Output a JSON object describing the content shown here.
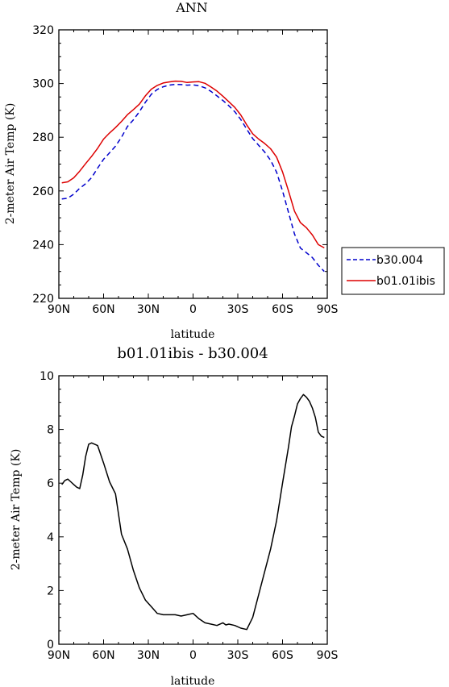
{
  "chart_data": [
    {
      "type": "line",
      "title": "ANN",
      "xlabel": "latitude",
      "ylabel": "2-meter Air Temp (K)",
      "xlim": [
        90,
        -90
      ],
      "ylim": [
        220,
        320
      ],
      "xticks": [
        90,
        60,
        30,
        0,
        -30,
        -60,
        -90
      ],
      "xticklabels": [
        "90N",
        "60N",
        "30N",
        "0",
        "30S",
        "60S",
        "90S"
      ],
      "yticks": [
        220,
        240,
        260,
        280,
        300,
        320
      ],
      "legend_position": "right, outside plot",
      "grid": false,
      "x": [
        88,
        84,
        80,
        76,
        72,
        68,
        64,
        60,
        56,
        52,
        48,
        44,
        40,
        36,
        32,
        28,
        24,
        20,
        16,
        12,
        8,
        4,
        0,
        -4,
        -8,
        -12,
        -16,
        -20,
        -24,
        -28,
        -32,
        -36,
        -40,
        -44,
        -48,
        -52,
        -56,
        -60,
        -64,
        -68,
        -72,
        -76,
        -80,
        -84,
        -88
      ],
      "series": [
        {
          "name": "b30.004",
          "color": "#0000cc",
          "dash": "dashed",
          "values": [
            257,
            257.3,
            258.8,
            261,
            262.7,
            265,
            268.5,
            271.8,
            274.2,
            276.7,
            280,
            284,
            286.5,
            289.5,
            293,
            296,
            297.8,
            298.8,
            299.4,
            299.7,
            299.6,
            299.4,
            299.5,
            299.2,
            298.4,
            297.1,
            295.4,
            293.7,
            291.7,
            289.5,
            286.6,
            283,
            279.5,
            277,
            274.5,
            271.4,
            267,
            260,
            252,
            244,
            238.7,
            237,
            235.2,
            232.3,
            230
          ]
        },
        {
          "name": "b01.01ibis",
          "color": "#dd0000",
          "dash": "solid",
          "values": [
            263,
            263.4,
            264.9,
            267.4,
            270.2,
            272.9,
            275.9,
            279.3,
            281.6,
            283.6,
            285.9,
            288.4,
            290.3,
            292.3,
            295.4,
            297.9,
            299.3,
            300.2,
            300.6,
            300.9,
            300.8,
            300.4,
            300.6,
            300.7,
            300.1,
            298.7,
            297.2,
            295.3,
            293.2,
            291.1,
            288.3,
            284.6,
            281.3,
            279.3,
            277.7,
            275.7,
            272.6,
            267.1,
            260,
            252.5,
            248.2,
            246.3,
            243.6,
            240,
            238.8
          ]
        }
      ]
    },
    {
      "type": "line",
      "title": "b01.01ibis - b30.004",
      "xlabel": "latitude",
      "ylabel": "2-meter Air Temp (K)",
      "xlim": [
        90,
        -90
      ],
      "ylim": [
        0,
        10
      ],
      "xticks": [
        90,
        60,
        30,
        0,
        -30,
        -60,
        -90
      ],
      "xticklabels": [
        "90N",
        "60N",
        "30N",
        "0",
        "30S",
        "60S",
        "90S"
      ],
      "yticks": [
        0,
        2,
        4,
        6,
        8,
        10
      ],
      "grid": false,
      "x": [
        88,
        86,
        84,
        82,
        80,
        78,
        76,
        74,
        72,
        70,
        68,
        64,
        60,
        56,
        52,
        48,
        44,
        40,
        36,
        32,
        28,
        24,
        20,
        16,
        12,
        8,
        4,
        0,
        -4,
        -8,
        -12,
        -16,
        -20,
        -22,
        -24,
        -28,
        -32,
        -36,
        -40,
        -44,
        -48,
        -52,
        -56,
        -60,
        -64,
        -66,
        -68,
        -70,
        -72,
        -74,
        -76,
        -78,
        -80,
        -82,
        -84,
        -86,
        -88
      ],
      "series": [
        {
          "color": "#000000",
          "values": [
            5.95,
            6.1,
            6.15,
            6.05,
            5.95,
            5.85,
            5.8,
            6.3,
            7,
            7.45,
            7.5,
            7.4,
            6.75,
            6.05,
            5.6,
            4.1,
            3.55,
            2.75,
            2.1,
            1.65,
            1.4,
            1.15,
            1.1,
            1.1,
            1.1,
            1.05,
            1.1,
            1.15,
            0.95,
            0.8,
            0.75,
            0.7,
            0.8,
            0.72,
            0.75,
            0.7,
            0.6,
            0.55,
            1.0,
            1.85,
            2.7,
            3.55,
            4.6,
            6,
            7.35,
            8.1,
            8.5,
            8.95,
            9.15,
            9.3,
            9.2,
            9.05,
            8.8,
            8.45,
            7.9,
            7.75,
            7.7
          ]
        }
      ]
    }
  ]
}
